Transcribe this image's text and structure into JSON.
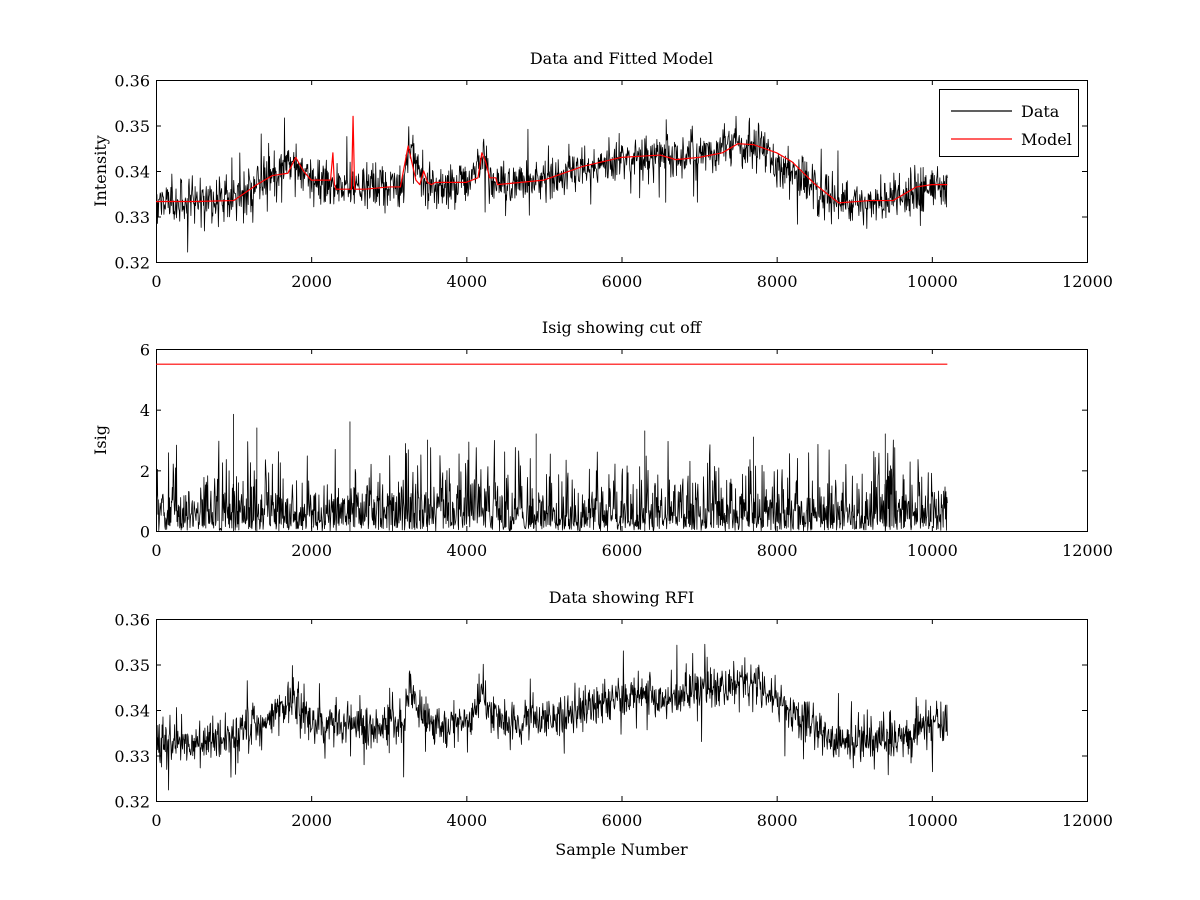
{
  "figure": {
    "background": "#ffffff"
  },
  "chart_data": [
    {
      "type": "line",
      "title": "Data and Fitted Model",
      "xlabel": "",
      "ylabel": "Intensity",
      "xlim": [
        0,
        12000
      ],
      "ylim": [
        0.32,
        0.36
      ],
      "xticks": [
        0,
        2000,
        4000,
        6000,
        8000,
        10000,
        12000
      ],
      "xtick_labels": [
        "0",
        "2000",
        "4000",
        "6000",
        "8000",
        "10000",
        "12000"
      ],
      "yticks": [
        0.32,
        0.33,
        0.34,
        0.35,
        0.36
      ],
      "ytick_labels": [
        "0.32",
        "0.33",
        "0.34",
        "0.35",
        "0.36"
      ],
      "grid": false,
      "legend": {
        "placement": "top-right",
        "entries": [
          {
            "label": "Data",
            "color": "#000000"
          },
          {
            "label": "Model",
            "color": "#ff0000"
          }
        ]
      },
      "series": [
        {
          "name": "Data",
          "color": "#000000",
          "style": "noisy",
          "noise": 0.0045,
          "x": [
            0,
            500,
            1000,
            1500,
            1800,
            2000,
            2300,
            2550,
            3000,
            3200,
            3250,
            3500,
            4000,
            4200,
            4400,
            5000,
            6000,
            6700,
            7000,
            7500,
            7700,
            8000,
            8500,
            8800,
            9500,
            9900,
            10200
          ],
          "y": [
            0.3333,
            0.3332,
            0.334,
            0.339,
            0.342,
            0.337,
            0.337,
            0.3365,
            0.3365,
            0.337,
            0.345,
            0.337,
            0.337,
            0.343,
            0.337,
            0.338,
            0.343,
            0.343,
            0.344,
            0.346,
            0.346,
            0.342,
            0.336,
            0.333,
            0.3335,
            0.3365,
            0.337
          ]
        },
        {
          "name": "Model",
          "color": "#ff0000",
          "style": "smooth",
          "x": [
            0,
            500,
            1000,
            1300,
            1500,
            1700,
            1800,
            1900,
            2000,
            2250,
            2280,
            2300,
            2320,
            2400,
            2520,
            2540,
            2560,
            2700,
            3000,
            3150,
            3250,
            3350,
            3400,
            3450,
            3500,
            3550,
            3600,
            3800,
            4000,
            4150,
            4200,
            4250,
            4300,
            4380,
            4400,
            5000,
            5500,
            6000,
            6500,
            6700,
            7000,
            7300,
            7500,
            7700,
            8000,
            8200,
            8500,
            8800,
            9200,
            9500,
            9800,
            10000,
            10200
          ],
          "y": [
            0.3333,
            0.3333,
            0.3335,
            0.337,
            0.339,
            0.3395,
            0.343,
            0.34,
            0.338,
            0.338,
            0.344,
            0.337,
            0.336,
            0.336,
            0.336,
            0.352,
            0.336,
            0.336,
            0.3365,
            0.3365,
            0.3455,
            0.338,
            0.337,
            0.34,
            0.3375,
            0.337,
            0.3375,
            0.3375,
            0.3375,
            0.3385,
            0.344,
            0.342,
            0.3385,
            0.3385,
            0.337,
            0.338,
            0.341,
            0.343,
            0.3435,
            0.3425,
            0.343,
            0.344,
            0.346,
            0.3458,
            0.344,
            0.342,
            0.337,
            0.333,
            0.3335,
            0.3335,
            0.3365,
            0.337,
            0.337
          ]
        }
      ]
    },
    {
      "type": "line",
      "title": "Isig showing cut off",
      "xlabel": "",
      "ylabel": "Isig",
      "xlim": [
        0,
        12000
      ],
      "ylim": [
        0,
        6
      ],
      "xticks": [
        0,
        2000,
        4000,
        6000,
        8000,
        10000,
        12000
      ],
      "xtick_labels": [
        "0",
        "2000",
        "4000",
        "6000",
        "8000",
        "10000",
        "12000"
      ],
      "yticks": [
        0,
        2,
        4,
        6
      ],
      "ytick_labels": [
        "0",
        "2",
        "4",
        "6"
      ],
      "grid": false,
      "series": [
        {
          "name": "Isig",
          "color": "#000000",
          "style": "abs-noise",
          "x": [
            0,
            10200
          ],
          "y": [
            0.8,
            0.8
          ],
          "peaks": [
            [
              1000,
              3.85
            ],
            [
              2500,
              3.6
            ],
            [
              1300,
              3.4
            ],
            [
              6300,
              3.3
            ],
            [
              4900,
              3.2
            ],
            [
              9400,
              3.2
            ],
            [
              7700,
              3.1
            ],
            [
              3500,
              3.0
            ]
          ]
        },
        {
          "name": "Cut off",
          "color": "#ff0000",
          "style": "straight",
          "x": [
            0,
            10200
          ],
          "y": [
            5.5,
            5.5
          ]
        }
      ]
    },
    {
      "type": "line",
      "title": "Data showing RFI",
      "xlabel": "Sample Number",
      "ylabel": "",
      "xlim": [
        0,
        12000
      ],
      "ylim": [
        0.32,
        0.36
      ],
      "xticks": [
        0,
        2000,
        4000,
        6000,
        8000,
        10000,
        12000
      ],
      "xtick_labels": [
        "0",
        "2000",
        "4000",
        "6000",
        "8000",
        "10000",
        "12000"
      ],
      "yticks": [
        0.32,
        0.33,
        0.34,
        0.35,
        0.36
      ],
      "ytick_labels": [
        "0.32",
        "0.33",
        "0.34",
        "0.35",
        "0.36"
      ],
      "grid": false,
      "series": [
        {
          "name": "Data",
          "color": "#000000",
          "style": "noisy",
          "noise": 0.0045,
          "x": [
            0,
            500,
            1000,
            1500,
            1800,
            2000,
            2300,
            2550,
            3000,
            3200,
            3250,
            3500,
            4000,
            4200,
            4400,
            5000,
            6000,
            6700,
            7000,
            7500,
            7700,
            8000,
            8500,
            8800,
            9500,
            9900,
            10200
          ],
          "y": [
            0.3333,
            0.3332,
            0.334,
            0.339,
            0.342,
            0.337,
            0.337,
            0.3365,
            0.3365,
            0.337,
            0.345,
            0.337,
            0.337,
            0.343,
            0.337,
            0.338,
            0.343,
            0.343,
            0.344,
            0.346,
            0.346,
            0.342,
            0.336,
            0.333,
            0.3335,
            0.3365,
            0.337
          ]
        }
      ]
    }
  ]
}
